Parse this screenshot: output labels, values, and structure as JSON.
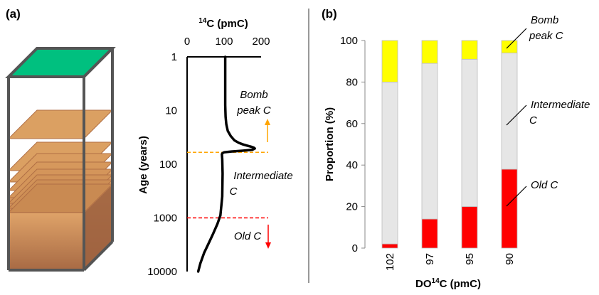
{
  "panels": {
    "a_label": "(a)",
    "b_label": "(b)"
  },
  "colors": {
    "soil_top": "#00c07f",
    "soil_layer": "#d9995b",
    "soil_layer_edge": "#b06f45",
    "soil_bottom": "#a86a44",
    "frame": "#555555",
    "bomb": "#ffff00",
    "intermediate": "#e6e6e6",
    "old": "#ff0000",
    "bomb_line": "#ffa500",
    "old_line": "#ff0000"
  },
  "chart_data": [
    {
      "type": "line",
      "xlabel": "14C (pmC)",
      "xlabel_parts": {
        "sup": "14",
        "rest": "C (pmC)"
      },
      "ylabel": "Age (years)",
      "y_scale": "log",
      "y_inverted": true,
      "xlim": [
        0,
        200
      ],
      "ylim": [
        1,
        10000
      ],
      "x_ticks": [
        "0",
        "100",
        "200"
      ],
      "y_ticks": [
        "1",
        "10",
        "100",
        "1000",
        "10000"
      ],
      "x_axis_position": "top",
      "series": [
        {
          "x": [
            103,
            103,
            103,
            104,
            106,
            110,
            118,
            128,
            140,
            152,
            162,
            172,
            180,
            183,
            176,
            150,
            120,
            100,
            96,
            94,
            95,
            96,
            95,
            90,
            82,
            70,
            58,
            46,
            36,
            30
          ],
          "y": [
            1,
            3,
            8,
            13,
            18,
            24,
            30,
            36,
            40,
            43,
            45,
            47,
            49,
            51,
            54,
            56,
            58,
            60,
            62,
            65,
            80,
            150,
            400,
            900,
            1300,
            2000,
            3000,
            4500,
            7000,
            10000
          ]
        }
      ],
      "thresholds": [
        {
          "y": 60,
          "color": "orange",
          "style": "dashed"
        },
        {
          "y": 1000,
          "color": "red",
          "style": "dashed"
        }
      ],
      "annotations": [
        {
          "lines": [
            "Bomb",
            "peak C"
          ],
          "arrow": "up",
          "color": "orange"
        },
        {
          "lines": [
            "Intermediate",
            "C"
          ]
        },
        {
          "lines": [
            "Old C"
          ],
          "arrow": "down",
          "color": "red"
        }
      ]
    },
    {
      "type": "bar",
      "stacked": true,
      "xlabel": "DO14C (pmC)",
      "xlabel_parts": {
        "pre": "DO",
        "sup": "14",
        "rest": "C (pmC)"
      },
      "ylabel": "Proportion (%)",
      "ylim": [
        0,
        100
      ],
      "y_ticks": [
        "0",
        "20",
        "40",
        "60",
        "80",
        "100"
      ],
      "categories": [
        "102",
        "97",
        "95",
        "90"
      ],
      "series": [
        {
          "name": "Old C",
          "values": [
            2,
            14,
            20,
            38
          ]
        },
        {
          "name": "Intermediate C",
          "values": [
            78,
            75,
            71,
            56
          ]
        },
        {
          "name": "Bomb peak C",
          "values": [
            20,
            11,
            9,
            6
          ]
        }
      ],
      "legend": [
        {
          "lines": [
            "Bomb",
            "peak C"
          ]
        },
        {
          "lines": [
            "Intermediate",
            "C"
          ]
        },
        {
          "lines": [
            "Old C"
          ]
        }
      ]
    }
  ]
}
